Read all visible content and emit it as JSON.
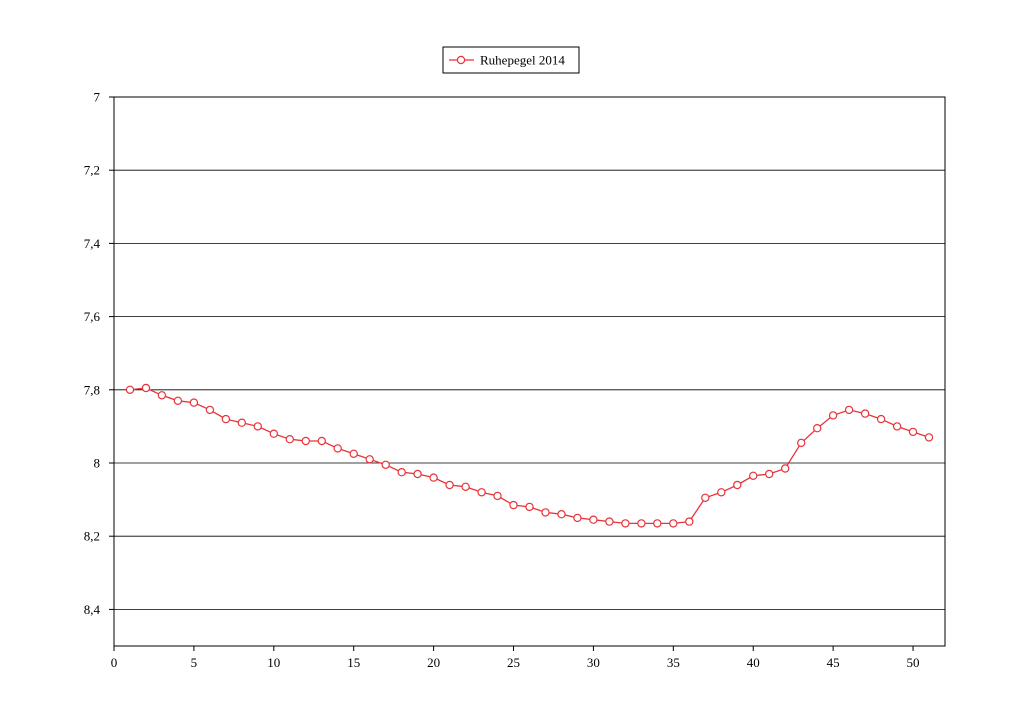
{
  "chart_data": {
    "type": "line",
    "title": "",
    "xlabel": "",
    "ylabel": "",
    "xlim": [
      0,
      52
    ],
    "ylim": [
      7,
      8.5
    ],
    "y_inverted": true,
    "grid": "horizontal",
    "legend_placement": "top-center",
    "x_ticks": [
      0,
      5,
      10,
      15,
      20,
      25,
      30,
      35,
      40,
      45,
      50
    ],
    "x_tick_labels": [
      "0",
      "5",
      "10",
      "15",
      "20",
      "25",
      "30",
      "35",
      "40",
      "45",
      "50"
    ],
    "y_ticks": [
      7,
      7.2,
      7.4,
      7.6,
      7.8,
      8,
      8.2,
      8.4
    ],
    "y_tick_labels": [
      "7",
      "7,2",
      "7,4",
      "7,6",
      "7,8",
      "8",
      "8,2",
      "8,4"
    ],
    "series": [
      {
        "name": "Ruhepegel 2014",
        "color": "#e8333a",
        "marker": "open-circle",
        "x": [
          1,
          2,
          3,
          4,
          5,
          6,
          7,
          8,
          9,
          10,
          11,
          12,
          13,
          14,
          15,
          16,
          17,
          18,
          19,
          20,
          21,
          22,
          23,
          24,
          25,
          26,
          27,
          28,
          29,
          30,
          31,
          32,
          33,
          34,
          35,
          36,
          37,
          38,
          39,
          40,
          41,
          42,
          43,
          44,
          45,
          46,
          47,
          48,
          49,
          50,
          51
        ],
        "values": [
          7.8,
          7.795,
          7.815,
          7.83,
          7.835,
          7.855,
          7.88,
          7.89,
          7.9,
          7.92,
          7.935,
          7.94,
          7.94,
          7.96,
          7.975,
          7.99,
          8.005,
          8.025,
          8.03,
          8.04,
          8.06,
          8.065,
          8.08,
          8.09,
          8.115,
          8.12,
          8.135,
          8.14,
          8.15,
          8.155,
          8.16,
          8.165,
          8.165,
          8.165,
          8.165,
          8.16,
          8.095,
          8.08,
          8.06,
          8.035,
          8.03,
          8.015,
          7.945,
          7.905,
          7.87,
          7.855,
          7.865,
          7.88,
          7.9,
          7.915,
          7.93
        ]
      }
    ]
  }
}
